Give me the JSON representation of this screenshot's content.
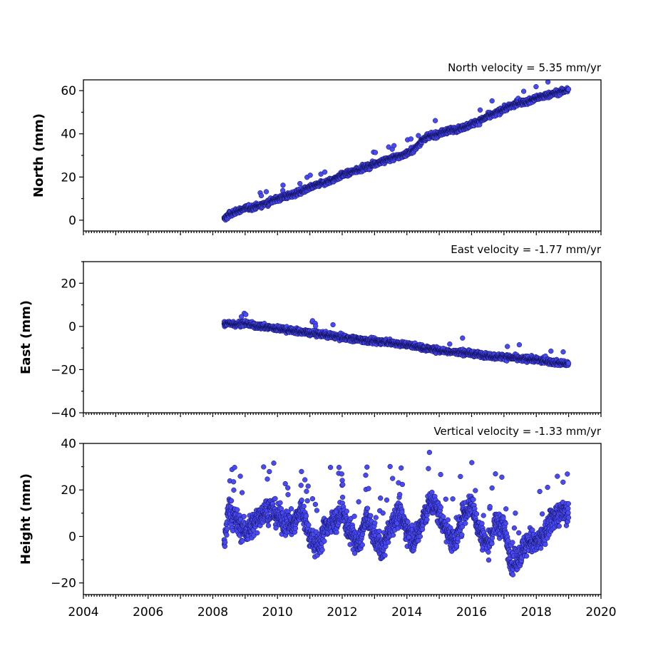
{
  "chart_data": [
    {
      "type": "scatter",
      "title": "North velocity = 5.35 mm/yr",
      "ylabel": "North (mm)",
      "xlim": [
        2004,
        2020
      ],
      "ylim": [
        -5,
        65
      ],
      "yticks": [
        "0",
        "20",
        "40",
        "60"
      ],
      "ytick_values": [
        0,
        20,
        40,
        60
      ],
      "xticks": [],
      "colors": {
        "marker_fill": "#4a4af5",
        "marker_edge": "#10105a"
      },
      "series": [
        {
          "x": [
            2008.35,
            2008.5,
            2008.75,
            2009.0,
            2009.25,
            2009.5,
            2009.75,
            2010.0,
            2010.25,
            2010.5,
            2010.75,
            2011.0,
            2011.25,
            2011.5,
            2011.75,
            2012.0,
            2012.25,
            2012.5,
            2012.75,
            2013.0,
            2013.25,
            2013.5,
            2013.75,
            2014.0,
            2014.25,
            2014.5,
            2014.75,
            2015.0,
            2015.25,
            2015.5,
            2015.75,
            2016.0,
            2016.25,
            2016.5,
            2016.75,
            2017.0,
            2017.25,
            2017.5,
            2017.75,
            2018.0,
            2018.25,
            2018.5,
            2018.75,
            2019.0
          ],
          "y": [
            0.5,
            2.5,
            4.0,
            5.5,
            6.0,
            7.0,
            8.5,
            10.0,
            11.0,
            12.0,
            13.5,
            15.0,
            16.5,
            17.5,
            19.0,
            21.0,
            22.0,
            23.5,
            24.5,
            26.0,
            27.5,
            28.5,
            29.5,
            31.0,
            33.0,
            37.5,
            39.0,
            40.0,
            41.5,
            42.0,
            43.0,
            44.5,
            46.0,
            48.0,
            49.5,
            51.5,
            53.0,
            54.5,
            55.0,
            56.5,
            57.5,
            58.5,
            59.5,
            60.5
          ]
        }
      ]
    },
    {
      "type": "scatter",
      "title": "East velocity = -1.77 mm/yr",
      "ylabel": "East (mm)",
      "xlim": [
        2004,
        2020
      ],
      "ylim": [
        -40,
        30
      ],
      "yticks": [
        "20",
        "0",
        "−20",
        "−40"
      ],
      "ytick_values": [
        20,
        0,
        -20,
        -40
      ],
      "xticks": [],
      "colors": {
        "marker_fill": "#4a4af5",
        "marker_edge": "#10105a"
      },
      "series": [
        {
          "x": [
            2008.35,
            2008.5,
            2008.75,
            2009.0,
            2009.25,
            2009.5,
            2009.75,
            2010.0,
            2010.25,
            2010.5,
            2010.75,
            2011.0,
            2011.25,
            2011.5,
            2011.75,
            2012.0,
            2012.25,
            2012.5,
            2012.75,
            2013.0,
            2013.25,
            2013.5,
            2013.75,
            2014.0,
            2014.25,
            2014.5,
            2014.75,
            2015.0,
            2015.25,
            2015.5,
            2015.75,
            2016.0,
            2016.25,
            2016.5,
            2016.75,
            2017.0,
            2017.25,
            2017.5,
            2017.75,
            2018.0,
            2018.25,
            2018.5,
            2018.75,
            2019.0
          ],
          "y": [
            1.0,
            1.5,
            1.0,
            1.5,
            0.5,
            0.0,
            -0.5,
            -1.0,
            -1.5,
            -2.0,
            -2.5,
            -3.0,
            -3.5,
            -4.0,
            -4.5,
            -5.0,
            -5.5,
            -6.0,
            -6.5,
            -7.0,
            -7.0,
            -7.5,
            -8.0,
            -8.5,
            -9.0,
            -10.0,
            -10.5,
            -11.0,
            -11.5,
            -12.0,
            -12.0,
            -12.5,
            -13.0,
            -13.5,
            -14.0,
            -14.0,
            -14.5,
            -15.0,
            -15.0,
            -15.5,
            -16.0,
            -16.5,
            -17.0,
            -17.5
          ]
        }
      ]
    },
    {
      "type": "scatter",
      "title": "Vertical velocity = -1.33 mm/yr",
      "ylabel": "Height (mm)",
      "xlabel": "",
      "xlim": [
        2004,
        2020
      ],
      "ylim": [
        -25,
        40
      ],
      "yticks": [
        "40",
        "20",
        "0",
        "−20"
      ],
      "ytick_values": [
        40,
        20,
        0,
        -20
      ],
      "xticks": [
        "2004",
        "2006",
        "2008",
        "2010",
        "2012",
        "2014",
        "2016",
        "2018",
        "2020"
      ],
      "xtick_values": [
        2004,
        2006,
        2008,
        2010,
        2012,
        2014,
        2016,
        2018,
        2020
      ],
      "colors": {
        "marker_fill": "#4a4af5",
        "marker_edge": "#10105a"
      },
      "series": [
        {
          "x": [
            2008.35,
            2008.5,
            2008.75,
            2009.0,
            2009.25,
            2009.5,
            2009.75,
            2010.0,
            2010.25,
            2010.5,
            2010.75,
            2011.0,
            2011.25,
            2011.5,
            2011.75,
            2012.0,
            2012.25,
            2012.5,
            2012.75,
            2013.0,
            2013.25,
            2013.5,
            2013.75,
            2014.0,
            2014.25,
            2014.5,
            2014.75,
            2015.0,
            2015.25,
            2015.5,
            2015.75,
            2016.0,
            2016.25,
            2016.5,
            2016.75,
            2017.0,
            2017.25,
            2017.5,
            2017.75,
            2018.0,
            2018.25,
            2018.5,
            2018.75,
            2019.0
          ],
          "y": [
            -3,
            12,
            6,
            2,
            5,
            10,
            12,
            9,
            6,
            5,
            12,
            0,
            -5,
            5,
            6,
            10,
            2,
            -4,
            8,
            0,
            -6,
            5,
            10,
            3,
            -2,
            8,
            15,
            10,
            2,
            -3,
            10,
            14,
            2,
            -4,
            6,
            4,
            -12,
            -8,
            -2,
            -3,
            0,
            8,
            10,
            10
          ]
        }
      ]
    }
  ]
}
